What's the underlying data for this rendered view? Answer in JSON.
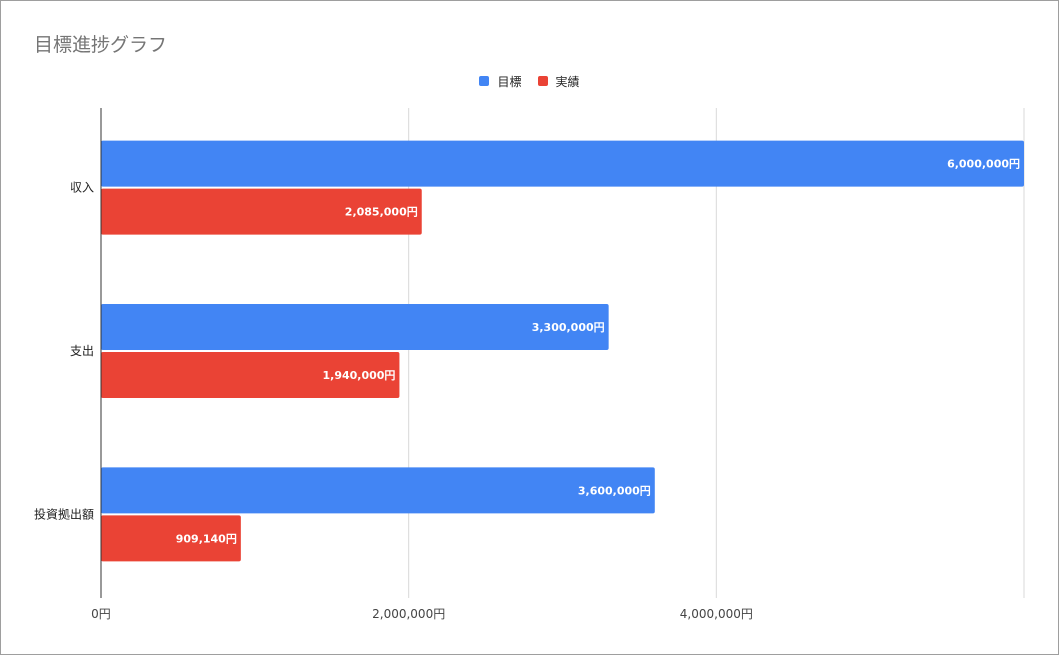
{
  "chart_data": {
    "type": "bar",
    "orientation": "horizontal",
    "title": "目標進捗グラフ",
    "xlabel": "",
    "ylabel": "",
    "categories": [
      "収入",
      "支出",
      "投資拠出額"
    ],
    "series": [
      {
        "name": "目標",
        "color": "#4285f4",
        "values": [
          6000000,
          3300000,
          3600000
        ],
        "labels": [
          "6,000,000円",
          "3,300,000円",
          "3,600,000円"
        ]
      },
      {
        "name": "実績",
        "color": "#ea4335",
        "values": [
          2085000,
          1940000,
          909140
        ],
        "labels": [
          "2,085,000円",
          "1,940,000円",
          "909,140円"
        ]
      }
    ],
    "xlim": [
      0,
      6000000
    ],
    "x_ticks": [
      0,
      2000000,
      4000000
    ],
    "x_tick_labels": [
      "0円",
      "2,000,000円",
      "4,000,000円"
    ],
    "grid": true,
    "legend_position": "top-center"
  }
}
